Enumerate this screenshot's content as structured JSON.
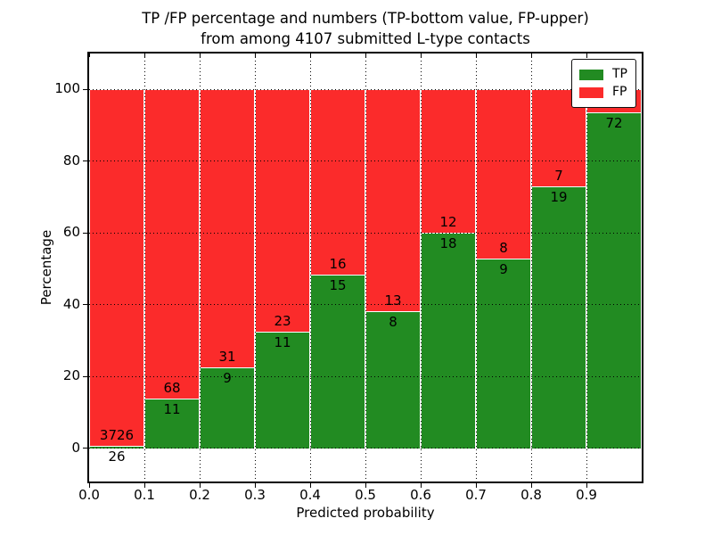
{
  "title": {
    "line1": "TP /FP percentage and numbers (TP-bottom value, FP-upper)",
    "line2": "from among 4107 submitted L-type contacts"
  },
  "chart_data": {
    "type": "bar",
    "stacking": "stacked-percentage-histogram",
    "title": "TP /FP percentage and numbers (TP-bottom value, FP-upper) from among 4107 submitted L-type contacts",
    "xlabel": "Predicted probability",
    "ylabel": "Percentage",
    "bin_edges": [
      0.0,
      0.1,
      0.2,
      0.3,
      0.4,
      0.5,
      0.6,
      0.7,
      0.8,
      0.9,
      1.0
    ],
    "x_tick_labels": [
      "0.0",
      "0.1",
      "0.2",
      "0.3",
      "0.4",
      "0.5",
      "0.6",
      "0.7",
      "0.8",
      "0.9"
    ],
    "y_ticks": [
      0,
      20,
      40,
      60,
      80,
      100
    ],
    "y_tick_labels": [
      "0",
      "20",
      "40",
      "60",
      "80",
      "100"
    ],
    "xlim": [
      0.0,
      1.0
    ],
    "ylim": [
      -9.3,
      110
    ],
    "grid": true,
    "legend": {
      "position": "upper right",
      "entries": [
        {
          "label": "TP",
          "color": "#228b22"
        },
        {
          "label": "FP",
          "color": "#fb2b2b"
        }
      ]
    },
    "series": [
      {
        "name": "TP",
        "color": "#228b22",
        "values": [
          26,
          11,
          9,
          11,
          15,
          8,
          18,
          9,
          19,
          72
        ]
      },
      {
        "name": "FP",
        "color": "#fb2b2b",
        "values": [
          3726,
          68,
          31,
          23,
          16,
          13,
          12,
          8,
          7,
          5
        ]
      }
    ],
    "bar_annotation_rule": "TP count printed just below segment boundary, FP count just above it",
    "total_contacts": "4107"
  },
  "colors": {
    "tp": "#228b22",
    "fp": "#fb2b2b",
    "text": "#000000",
    "background": "#ffffff"
  }
}
